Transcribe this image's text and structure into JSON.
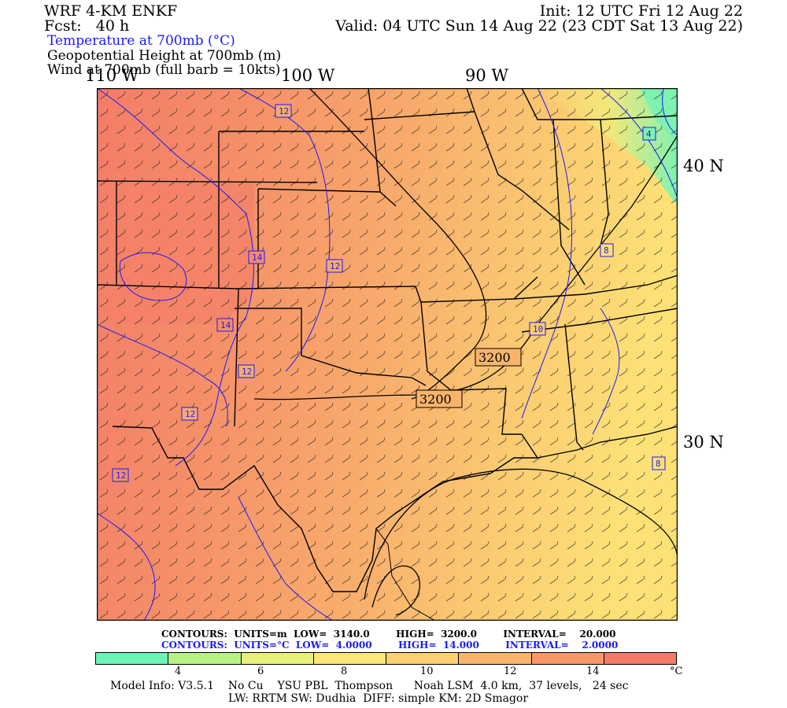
{
  "header": {
    "model": "WRF 4-KM ENKF",
    "fcst": "Fcst:   40 h",
    "init": "Init: 12 UTC Fri 12 Aug 22",
    "valid": "Valid: 04 UTC Sun 14 Aug 22 (23 CDT Sat 13 Aug 22)",
    "field1": "Temperature at 700mb (°C)",
    "field2": "Geopotential Height at 700mb (m)",
    "field3": "Wind at 700mb (full barb = 10kts)"
  },
  "axes": {
    "lon_labels": [
      "110 W",
      "100 W",
      "90 W"
    ],
    "lat_labels": [
      "40 N",
      "30 N"
    ]
  },
  "map": {
    "temp_contour_labels": [
      "12",
      "14",
      "12",
      "14",
      "12",
      "12",
      "12",
      "10",
      "8",
      "8",
      "4"
    ],
    "height_contour_labels": [
      "3200",
      "3200"
    ],
    "colors": {
      "warm": "#f47f68",
      "mid": "#f8aa6c",
      "cool": "#fccf72",
      "cold": "#c2ef80",
      "state_lines": "#000000",
      "temp_contours": "#1a1aff"
    }
  },
  "contours_info": {
    "height_line": "CONTOURS:  UNITS=m  LOW=  3140.0        HIGH=  3200.0        INTERVAL=    20.000",
    "temp_line": "CONTOURS:  UNITS=°C  LOW=  4.0000        HIGH=  14.000        INTERVAL=    2.0000"
  },
  "colorbar": {
    "colors": [
      "#6cf4b6",
      "#b6f286",
      "#e8f07c",
      "#fce77a",
      "#fbcf72",
      "#f9b46c",
      "#f89868",
      "#f47b68"
    ],
    "ticks": [
      "4",
      "6",
      "8",
      "10",
      "12",
      "14"
    ],
    "unit": "°C"
  },
  "footer": {
    "line1": "Model Info: V3.5.1    No Cu    YSU PBL  Thompson      Noah LSM  4.0 km,  37 levels,   24 sec",
    "line2": "LW: RRTM SW: Dudhia  DIFF: simple KM: 2D Smagor"
  }
}
